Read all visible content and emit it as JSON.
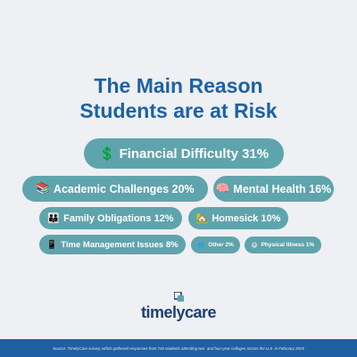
{
  "title_line1": "The Main Reason",
  "title_line2": "Students are at Risk",
  "chart_data": {
    "type": "bubble-list",
    "title": "The Main Reason Students are at Risk",
    "unit": "%",
    "colors": {
      "pill": "#5fa4ad",
      "title": "#1b62a6",
      "footer": "#1f5fa3",
      "background": "#eef0f3"
    },
    "items": [
      {
        "label": "Financial Difficulty",
        "value": 31,
        "display": "Financial Difficulty 31%",
        "icon": "dollar-sign-icon",
        "glyph": "💲"
      },
      {
        "label": "Academic Challenges",
        "value": 20,
        "display": "Academic Challenges 20%",
        "icon": "books-icon",
        "glyph": "📚"
      },
      {
        "label": "Mental Health",
        "value": 16,
        "display": "Mental Health 16%",
        "icon": "brain-icon",
        "glyph": "🧠"
      },
      {
        "label": "Family Obligations",
        "value": 12,
        "display": "Family Obligations 12%",
        "icon": "family-icon",
        "glyph": "👪"
      },
      {
        "label": "Homesick",
        "value": 10,
        "display": "Homesick 10%",
        "icon": "house-icon",
        "glyph": "🏡"
      },
      {
        "label": "Time Management Issues",
        "value": 8,
        "display": "Time Management Issues 8%",
        "icon": "phone-icon",
        "glyph": "📱"
      },
      {
        "label": "Other",
        "value": 2,
        "display": "Other 2%",
        "icon": "globe-icon",
        "glyph": "🌐"
      },
      {
        "label": "Physical Illness",
        "value": 1,
        "display": "Physical Illness 1%",
        "icon": "sick-face-icon",
        "glyph": "😷"
      }
    ]
  },
  "logo_text": "timelycare",
  "footer_text": "Source: TimelyCare survey, which gathered responses from 740 students attending two- and four-year colleges across the U.S. in February 2025"
}
